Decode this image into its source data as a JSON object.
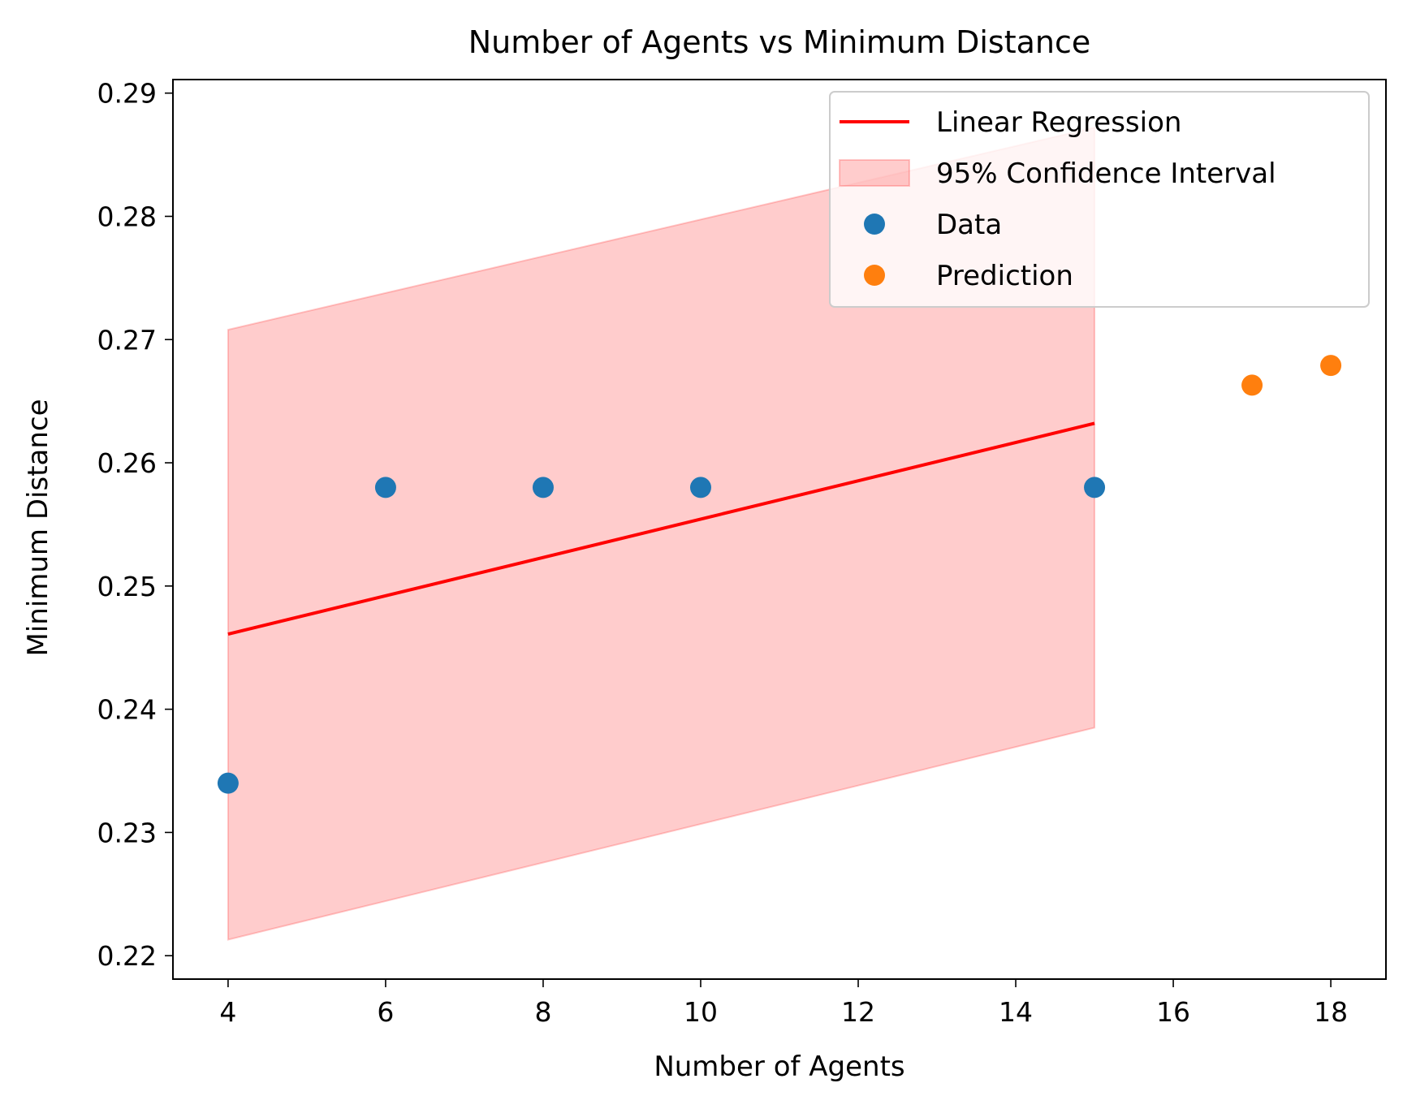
{
  "chart_data": {
    "type": "scatter",
    "title": "Number of Agents vs Minimum Distance",
    "xlabel": "Number of Agents",
    "ylabel": "Minimum Distance",
    "xlim": [
      3.3,
      18.7
    ],
    "ylim": [
      0.2181,
      0.2911
    ],
    "xticks": [
      4,
      6,
      8,
      10,
      12,
      14,
      16,
      18
    ],
    "yticks": [
      0.22,
      0.23,
      0.24,
      0.25,
      0.26,
      0.27,
      0.28,
      0.29
    ],
    "grid": false,
    "legend_position": "top-right",
    "legend": [
      {
        "label": "Linear Regression",
        "kind": "line",
        "color": "#ff0000"
      },
      {
        "label": "95% Confidence Interval",
        "kind": "patch",
        "color": "#ff0000"
      },
      {
        "label": "Data",
        "kind": "marker",
        "color": "#1f77b4"
      },
      {
        "label": "Prediction",
        "kind": "marker",
        "color": "#ff7f0e"
      }
    ],
    "regression_line": {
      "name": "Linear Regression",
      "color": "#ff0000",
      "x": [
        4,
        15
      ],
      "y": [
        0.2461,
        0.2632
      ]
    },
    "confidence_band": {
      "name": "95% Confidence Interval",
      "color": "#ff0000",
      "x": [
        4,
        15
      ],
      "upper": [
        0.2708,
        0.2872
      ],
      "lower": [
        0.2213,
        0.2385
      ]
    },
    "series": [
      {
        "name": "Data",
        "kind": "scatter",
        "color": "#1f77b4",
        "x": [
          4,
          6,
          8,
          10,
          15
        ],
        "y": [
          0.234,
          0.258,
          0.258,
          0.258,
          0.258
        ]
      },
      {
        "name": "Prediction",
        "kind": "scatter",
        "color": "#ff7f0e",
        "x": [
          17,
          18
        ],
        "y": [
          0.2663,
          0.2679
        ]
      }
    ]
  }
}
